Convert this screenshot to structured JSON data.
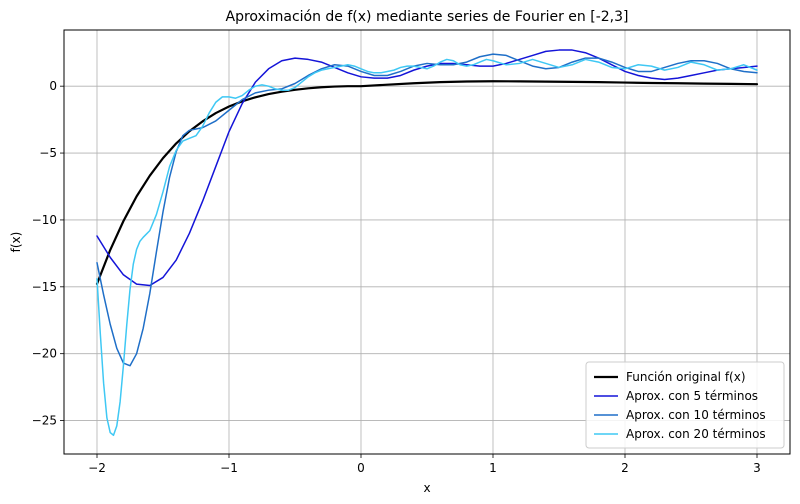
{
  "chart_data": {
    "type": "line",
    "title": "Aproximación de f(x) mediante series de Fourier en [-2,3]",
    "xlabel": "x",
    "ylabel": "f(x)",
    "xlim": [
      -2.25,
      3.25
    ],
    "ylim": [
      -27.5,
      4.2
    ],
    "xticks": [
      -2,
      -1,
      0,
      1,
      2,
      3
    ],
    "xtick_labels": [
      "−2",
      "−1",
      "0",
      "1",
      "2",
      "3"
    ],
    "yticks": [
      0,
      -5,
      -10,
      -15,
      -20,
      -25
    ],
    "ytick_labels": [
      "0",
      "−5",
      "−10",
      "−15",
      "−20",
      "−25"
    ],
    "grid": true,
    "legend_position": "lower-right",
    "series": [
      {
        "name": "Función original f(x)",
        "color": "#000000",
        "x": [
          -2.0,
          -1.9,
          -1.8,
          -1.7,
          -1.6,
          -1.5,
          -1.4,
          -1.3,
          -1.2,
          -1.1,
          -1.0,
          -0.9,
          -0.8,
          -0.7,
          -0.6,
          -0.5,
          -0.4,
          -0.3,
          -0.2,
          -0.1,
          0.0,
          0.2,
          0.4,
          0.6,
          0.8,
          1.0,
          1.2,
          1.4,
          1.6,
          1.8,
          2.0,
          2.2,
          2.4,
          2.6,
          2.8,
          3.0
        ],
        "y": [
          -14.78,
          -12.25,
          -10.09,
          -8.24,
          -6.69,
          -5.38,
          -4.28,
          -3.37,
          -2.63,
          -2.01,
          -1.52,
          -1.13,
          -0.83,
          -0.59,
          -0.41,
          -0.27,
          -0.16,
          -0.08,
          -0.03,
          0.0,
          0.0,
          0.11,
          0.22,
          0.3,
          0.35,
          0.37,
          0.36,
          0.34,
          0.32,
          0.3,
          0.27,
          0.24,
          0.22,
          0.19,
          0.17,
          0.15
        ]
      },
      {
        "name": "Aprox. con 5 términos",
        "color": "#1414d8",
        "x": [
          -2.0,
          -1.9,
          -1.8,
          -1.7,
          -1.6,
          -1.5,
          -1.4,
          -1.3,
          -1.2,
          -1.1,
          -1.0,
          -0.9,
          -0.8,
          -0.7,
          -0.6,
          -0.5,
          -0.4,
          -0.3,
          -0.2,
          -0.1,
          0.0,
          0.1,
          0.2,
          0.3,
          0.4,
          0.5,
          0.6,
          0.7,
          0.8,
          0.9,
          1.0,
          1.1,
          1.2,
          1.3,
          1.4,
          1.5,
          1.6,
          1.7,
          1.8,
          1.9,
          2.0,
          2.1,
          2.2,
          2.3,
          2.4,
          2.5,
          2.6,
          2.7,
          2.8,
          2.9,
          3.0
        ],
        "y": [
          -11.2,
          -12.8,
          -14.1,
          -14.8,
          -14.9,
          -14.3,
          -13.0,
          -11.0,
          -8.6,
          -6.0,
          -3.4,
          -1.3,
          0.3,
          1.3,
          1.9,
          2.1,
          2.0,
          1.8,
          1.4,
          1.0,
          0.7,
          0.6,
          0.6,
          0.8,
          1.2,
          1.5,
          1.7,
          1.7,
          1.6,
          1.5,
          1.5,
          1.7,
          2.0,
          2.3,
          2.6,
          2.7,
          2.7,
          2.5,
          2.1,
          1.6,
          1.1,
          0.8,
          0.6,
          0.5,
          0.6,
          0.8,
          1.0,
          1.2,
          1.3,
          1.4,
          1.5
        ]
      },
      {
        "name": "Aprox. con 10 términos",
        "color": "#1f6fc8",
        "x": [
          -2.0,
          -1.95,
          -1.9,
          -1.85,
          -1.8,
          -1.75,
          -1.7,
          -1.65,
          -1.6,
          -1.55,
          -1.5,
          -1.45,
          -1.4,
          -1.35,
          -1.3,
          -1.25,
          -1.2,
          -1.1,
          -1.0,
          -0.9,
          -0.8,
          -0.7,
          -0.6,
          -0.5,
          -0.4,
          -0.3,
          -0.2,
          -0.1,
          0.0,
          0.1,
          0.2,
          0.3,
          0.4,
          0.5,
          0.6,
          0.7,
          0.8,
          0.9,
          1.0,
          1.1,
          1.2,
          1.3,
          1.4,
          1.5,
          1.6,
          1.7,
          1.8,
          1.9,
          2.0,
          2.1,
          2.2,
          2.3,
          2.4,
          2.5,
          2.6,
          2.7,
          2.8,
          2.9,
          3.0
        ],
        "y": [
          -13.2,
          -15.6,
          -17.8,
          -19.6,
          -20.7,
          -20.9,
          -20.0,
          -18.1,
          -15.5,
          -12.4,
          -9.4,
          -6.8,
          -4.9,
          -3.7,
          -3.3,
          -3.2,
          -3.1,
          -2.6,
          -1.8,
          -1.0,
          -0.5,
          -0.3,
          -0.2,
          0.2,
          0.8,
          1.3,
          1.6,
          1.5,
          1.1,
          0.8,
          0.8,
          1.1,
          1.5,
          1.7,
          1.6,
          1.6,
          1.8,
          2.2,
          2.4,
          2.3,
          1.9,
          1.5,
          1.3,
          1.4,
          1.8,
          2.1,
          2.1,
          1.8,
          1.4,
          1.1,
          1.1,
          1.4,
          1.7,
          1.9,
          1.9,
          1.7,
          1.3,
          1.1,
          1.0
        ]
      },
      {
        "name": "Aprox. con 20 términos",
        "color": "#3fc8f4",
        "x": [
          -2.0,
          -1.975,
          -1.95,
          -1.925,
          -1.9,
          -1.875,
          -1.85,
          -1.825,
          -1.8,
          -1.775,
          -1.75,
          -1.725,
          -1.7,
          -1.675,
          -1.65,
          -1.6,
          -1.55,
          -1.5,
          -1.45,
          -1.4,
          -1.35,
          -1.3,
          -1.25,
          -1.2,
          -1.15,
          -1.1,
          -1.05,
          -1.0,
          -0.95,
          -0.9,
          -0.85,
          -0.8,
          -0.75,
          -0.7,
          -0.65,
          -0.6,
          -0.55,
          -0.5,
          -0.45,
          -0.4,
          -0.35,
          -0.3,
          -0.25,
          -0.2,
          -0.15,
          -0.1,
          -0.05,
          0.0,
          0.05,
          0.1,
          0.15,
          0.2,
          0.25,
          0.3,
          0.35,
          0.4,
          0.45,
          0.5,
          0.55,
          0.6,
          0.65,
          0.7,
          0.75,
          0.8,
          0.85,
          0.9,
          0.95,
          1.0,
          1.1,
          1.2,
          1.3,
          1.4,
          1.5,
          1.6,
          1.7,
          1.8,
          1.9,
          2.0,
          2.1,
          2.2,
          2.3,
          2.4,
          2.5,
          2.6,
          2.7,
          2.8,
          2.9,
          3.0
        ],
        "y": [
          -14.4,
          -18.5,
          -22.2,
          -24.8,
          -25.9,
          -26.1,
          -25.4,
          -23.6,
          -20.9,
          -17.9,
          -15.2,
          -13.3,
          -12.2,
          -11.6,
          -11.3,
          -10.8,
          -9.6,
          -7.9,
          -6.0,
          -4.8,
          -4.1,
          -3.9,
          -3.7,
          -3.0,
          -2.0,
          -1.2,
          -0.8,
          -0.8,
          -0.9,
          -0.7,
          -0.3,
          0.0,
          0.1,
          0.0,
          -0.2,
          -0.3,
          -0.3,
          -0.1,
          0.3,
          0.7,
          1.0,
          1.2,
          1.3,
          1.4,
          1.5,
          1.6,
          1.5,
          1.3,
          1.1,
          1.0,
          1.0,
          1.1,
          1.2,
          1.4,
          1.5,
          1.5,
          1.4,
          1.3,
          1.5,
          1.8,
          2.0,
          1.9,
          1.6,
          1.5,
          1.6,
          1.8,
          2.0,
          1.9,
          1.6,
          1.7,
          2.0,
          1.7,
          1.4,
          1.6,
          2.0,
          1.8,
          1.4,
          1.3,
          1.6,
          1.5,
          1.2,
          1.4,
          1.8,
          1.6,
          1.2,
          1.3,
          1.6,
          1.2
        ]
      }
    ]
  }
}
